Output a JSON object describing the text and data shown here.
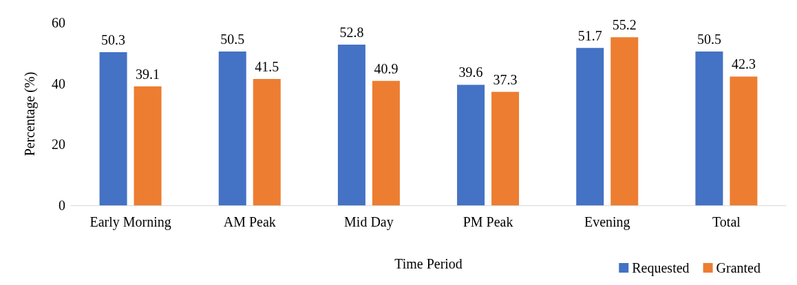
{
  "chart_data": {
    "type": "bar",
    "xlabel": "Time Period",
    "ylabel": "Percentage (%)",
    "categories": [
      "Early Morning",
      "AM Peak",
      "Mid Day",
      "PM Peak",
      "Evening",
      "Total"
    ],
    "series": [
      {
        "name": "Requested",
        "color": "#4472c4",
        "values": [
          50.3,
          50.5,
          52.8,
          39.6,
          51.7,
          50.5
        ]
      },
      {
        "name": "Granted",
        "color": "#ed7d31",
        "values": [
          39.1,
          41.5,
          40.9,
          37.3,
          55.2,
          42.3
        ]
      }
    ],
    "ylim": [
      0,
      60
    ],
    "yticks": [
      0,
      20,
      40,
      60
    ],
    "grid": false,
    "legend": "bottom right",
    "data_labels": true
  }
}
